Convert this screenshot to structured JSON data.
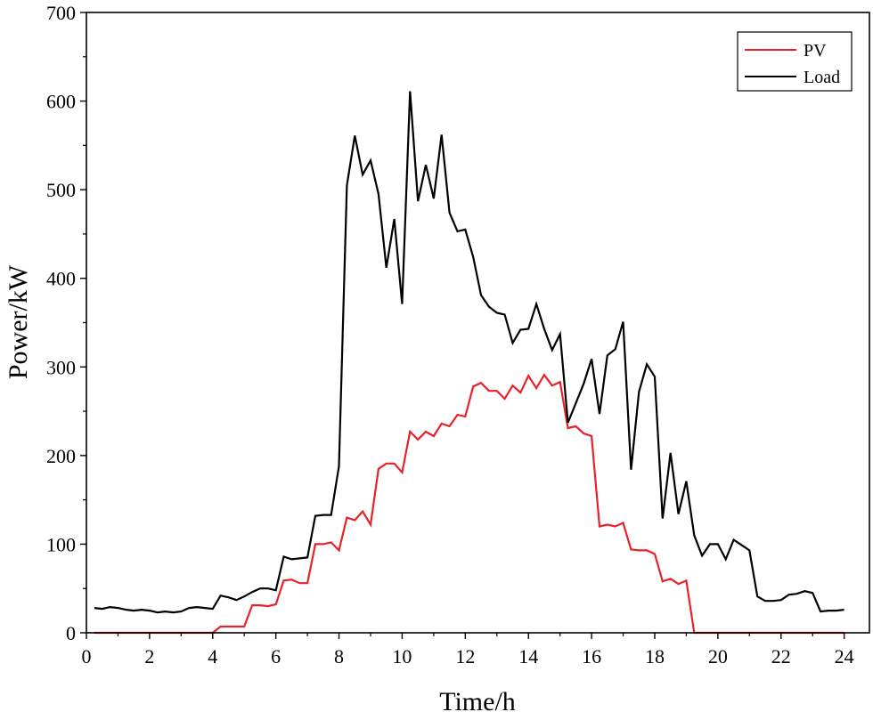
{
  "chart_data": {
    "type": "line",
    "xlabel": "Time/h",
    "ylabel": "Power/kW",
    "xlim": [
      0,
      24.8
    ],
    "ylim": [
      0,
      700
    ],
    "xticks": [
      0,
      2,
      4,
      6,
      8,
      10,
      12,
      14,
      16,
      18,
      20,
      22,
      24
    ],
    "yticks": [
      0,
      100,
      200,
      300,
      400,
      500,
      600,
      700
    ],
    "legend_position": "top-right",
    "grid": false,
    "series": [
      {
        "name": "PV",
        "color": "#e8222a",
        "x": [
          0.25,
          0.5,
          0.75,
          1,
          1.25,
          1.5,
          1.75,
          2,
          2.25,
          2.5,
          2.75,
          3,
          3.25,
          3.5,
          3.75,
          4,
          4.25,
          4.5,
          4.75,
          5,
          5.25,
          5.5,
          5.75,
          6,
          6.25,
          6.5,
          6.75,
          7,
          7.25,
          7.5,
          7.75,
          8,
          8.25,
          8.5,
          8.75,
          9,
          9.25,
          9.5,
          9.75,
          10,
          10.25,
          10.5,
          10.75,
          11,
          11.25,
          11.5,
          11.75,
          12,
          12.25,
          12.5,
          12.75,
          13,
          13.25,
          13.5,
          13.75,
          14,
          14.25,
          14.5,
          14.75,
          15,
          15.25,
          15.5,
          15.75,
          16,
          16.25,
          16.5,
          16.75,
          17,
          17.25,
          17.5,
          17.75,
          18,
          18.25,
          18.5,
          18.75,
          19,
          19.25,
          19.5,
          19.75,
          20,
          20.25,
          20.5,
          20.75,
          21,
          21.25,
          21.5,
          21.75,
          22,
          22.25,
          22.5,
          22.75,
          23,
          23.25,
          23.5,
          23.75,
          24
        ],
        "values": [
          0,
          0,
          0,
          0,
          0,
          0,
          0,
          0,
          0,
          0,
          0,
          0,
          0,
          0,
          0,
          0,
          7,
          7,
          7,
          7,
          31,
          31,
          30,
          32,
          59,
          60,
          56,
          56,
          100,
          100,
          102,
          93,
          130,
          127,
          137,
          122,
          185,
          191,
          191,
          181,
          227,
          218,
          227,
          222,
          236,
          233,
          246,
          244,
          278,
          282,
          273,
          273,
          264,
          279,
          271,
          290,
          276,
          291,
          279,
          283,
          231,
          233,
          225,
          222,
          120,
          122,
          120,
          124,
          94,
          93,
          93,
          89,
          58,
          61,
          55,
          59,
          0,
          0,
          0,
          0,
          0,
          0,
          0,
          0,
          0,
          0,
          0,
          0,
          0,
          0,
          0,
          0,
          0,
          0,
          0,
          0
        ]
      },
      {
        "name": "Load",
        "color": "#000000",
        "x": [
          0.25,
          0.5,
          0.75,
          1,
          1.25,
          1.5,
          1.75,
          2,
          2.25,
          2.5,
          2.75,
          3,
          3.25,
          3.5,
          3.75,
          4,
          4.25,
          4.5,
          4.75,
          5,
          5.25,
          5.5,
          5.75,
          6,
          6.25,
          6.5,
          6.75,
          7,
          7.25,
          7.5,
          7.75,
          8,
          8.25,
          8.5,
          8.75,
          9,
          9.25,
          9.5,
          9.75,
          10,
          10.25,
          10.5,
          10.75,
          11,
          11.25,
          11.5,
          11.75,
          12,
          12.25,
          12.5,
          12.75,
          13,
          13.25,
          13.5,
          13.75,
          14,
          14.25,
          14.5,
          14.75,
          15,
          15.25,
          15.5,
          15.75,
          16,
          16.25,
          16.5,
          16.75,
          17,
          17.25,
          17.5,
          17.75,
          18,
          18.25,
          18.5,
          18.75,
          19,
          19.25,
          19.5,
          19.75,
          20,
          20.25,
          20.5,
          20.75,
          21,
          21.25,
          21.5,
          21.75,
          22,
          22.25,
          22.5,
          22.75,
          23,
          23.25,
          23.5,
          23.75,
          24
        ],
        "values": [
          28,
          27,
          29,
          28,
          26,
          25,
          26,
          25,
          23,
          24,
          23,
          24,
          28,
          29,
          28,
          27,
          42,
          40,
          37,
          41,
          46,
          50,
          50,
          48,
          86,
          83,
          84,
          85,
          132,
          133,
          133,
          188,
          505,
          561,
          517,
          533,
          495,
          412,
          467,
          371,
          611,
          487,
          528,
          490,
          562,
          474,
          453,
          455,
          424,
          381,
          368,
          361,
          359,
          327,
          342,
          343,
          371,
          343,
          319,
          337,
          237,
          259,
          281,
          309,
          247,
          313,
          320,
          351,
          184,
          272,
          303,
          289,
          129,
          203,
          134,
          171,
          110,
          87,
          100,
          100,
          83,
          105,
          99,
          93,
          41,
          36,
          36,
          37,
          43,
          44,
          47,
          45,
          24,
          25,
          25,
          26
        ]
      }
    ]
  }
}
